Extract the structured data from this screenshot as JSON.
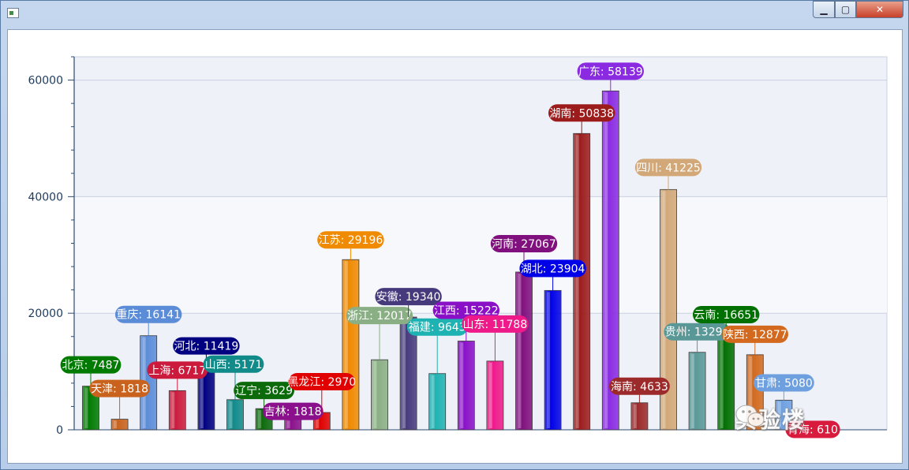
{
  "window": {
    "title": ""
  },
  "colors": {
    "plot_bg": "#eef1f8",
    "grid": "#c8d0e0",
    "axis": "#2c4a70",
    "tick_text": "#1f3b5f"
  },
  "watermark": {
    "text": "实验楼",
    "icon": "wechat-icon"
  },
  "chart_data": {
    "type": "bar",
    "title": "",
    "xlabel": "",
    "ylabel": "",
    "ylim": [
      0,
      64000
    ],
    "yticks": [
      0,
      20000,
      40000,
      60000
    ],
    "grid": true,
    "categories": [
      "北京",
      "天津",
      "重庆",
      "上海",
      "河北",
      "山西",
      "辽宁",
      "吉林",
      "黑龙江",
      "江苏",
      "浙江",
      "安徽",
      "福建",
      "江西",
      "山东",
      "河南",
      "湖北",
      "湖南",
      "广东",
      "海南",
      "四川",
      "贵州",
      "云南",
      "陕西",
      "甘肃",
      "青海"
    ],
    "values": [
      7487,
      1818,
      16141,
      6717,
      11419,
      5171,
      3629,
      1818,
      2970,
      29196,
      12017,
      19340,
      9643,
      15222,
      11788,
      27067,
      23904,
      50838,
      58139,
      4633,
      41225,
      13294,
      16651,
      12877,
      5080,
      610
    ],
    "labels": [
      "北京: 7487",
      "天津: 1818",
      "重庆: 16141",
      "上海: 6717",
      "河北: 11419",
      "山西: 5171",
      "辽宁: 3629",
      "吉林: 1818",
      "黑龙江: 2970",
      "江苏: 29196",
      "浙江: 12017",
      "安徽: 19340",
      "福建: 9643",
      "江西: 15222",
      "山东: 11788",
      "河南: 27067",
      "湖北: 23904",
      "湖南: 50838",
      "广东: 58139",
      "海南: 4633",
      "四川: 41225",
      "贵州: 13294",
      "云南: 16651",
      "陕西: 12877",
      "甘肃: 5080",
      "青海: 610"
    ],
    "colors": [
      "#007a00",
      "#c8621c",
      "#5b8cd8",
      "#cc1a3c",
      "#000080",
      "#118a8a",
      "#0b6b0b",
      "#8b108b",
      "#e00000",
      "#f08a00",
      "#8aaf84",
      "#463a7c",
      "#1fb2b2",
      "#8a10c8",
      "#ee1a8a",
      "#80107e",
      "#0000e8",
      "#9c1c1c",
      "#8a2be2",
      "#9c2a2a",
      "#d2a878",
      "#5a9898",
      "#007000",
      "#d2691e",
      "#6ea0e0",
      "#d81a3c"
    ]
  }
}
